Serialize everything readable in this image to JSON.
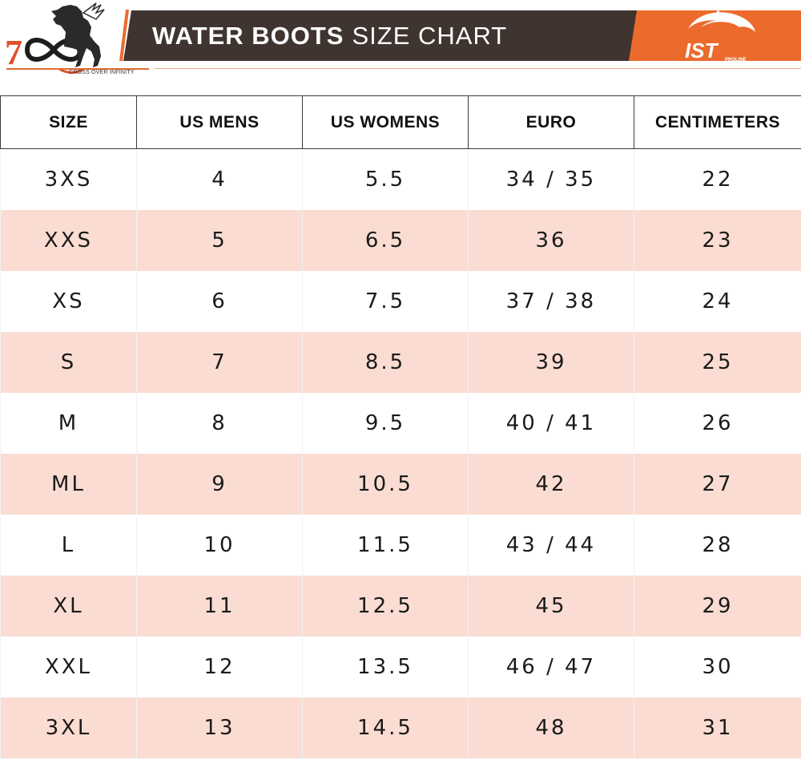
{
  "header": {
    "title_strong": "WATER BOOTS",
    "title_light": "SIZE CHART",
    "brand_tagline": "CROSS OVER INFINITY",
    "left_logo_text": "7",
    "right_logo_text": "IST",
    "right_logo_subtext": "PROLINE",
    "left_logo_icon": "horse-infinity-logo",
    "right_logo_icon": "dolphin-logo"
  },
  "colors": {
    "title_bar": "#3f3430",
    "accent_orange": "#ec6a2c",
    "row_stripe": "#fadcd2"
  },
  "table": {
    "columns": [
      "SIZE",
      "US MENS",
      "US WOMENS",
      "EURO",
      "CENTIMETERS"
    ],
    "rows": [
      [
        "3XS",
        "4",
        "5.5",
        "34 / 35",
        "22"
      ],
      [
        "XXS",
        "5",
        "6.5",
        "36",
        "23"
      ],
      [
        "XS",
        "6",
        "7.5",
        "37 / 38",
        "24"
      ],
      [
        "S",
        "7",
        "8.5",
        "39",
        "25"
      ],
      [
        "M",
        "8",
        "9.5",
        "40 / 41",
        "26"
      ],
      [
        "ML",
        "9",
        "10.5",
        "42",
        "27"
      ],
      [
        "L",
        "10",
        "11.5",
        "43 / 44",
        "28"
      ],
      [
        "XL",
        "11",
        "12.5",
        "45",
        "29"
      ],
      [
        "XXL",
        "12",
        "13.5",
        "46 / 47",
        "30"
      ],
      [
        "3XL",
        "13",
        "14.5",
        "48",
        "31"
      ]
    ]
  }
}
